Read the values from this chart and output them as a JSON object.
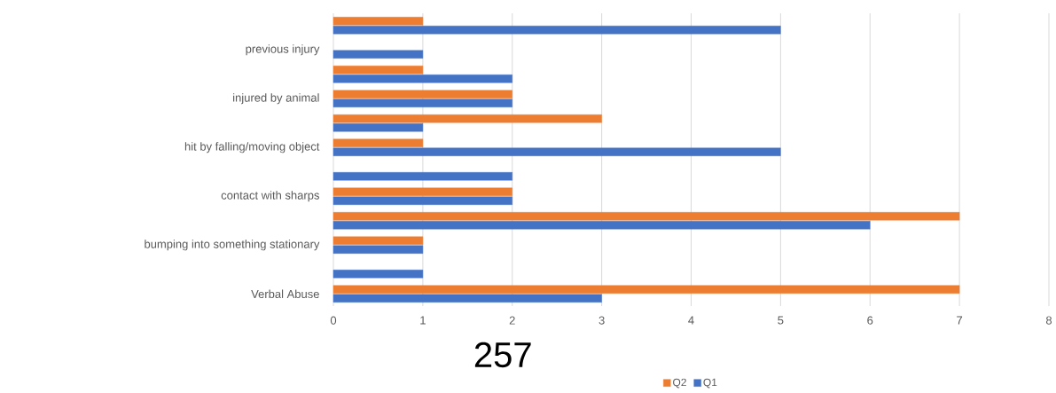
{
  "chart_data": {
    "type": "bar",
    "orientation": "horizontal",
    "categories": [
      null,
      "previous injury",
      null,
      "injured by animal",
      null,
      "hit by falling/moving object",
      null,
      "contact with sharps",
      null,
      "bumping into something stationary",
      null,
      "Verbal Abuse"
    ],
    "series": [
      {
        "name": "Q2",
        "color": "#ed7d31",
        "values": [
          1,
          null,
          1,
          2,
          3,
          1,
          null,
          2,
          7,
          1,
          null,
          7
        ]
      },
      {
        "name": "Q1",
        "color": "#4472c4",
        "values": [
          5,
          1,
          2,
          2,
          1,
          5,
          2,
          2,
          6,
          1,
          1,
          3
        ]
      }
    ],
    "xlim": [
      0,
      8
    ],
    "xticks": [
      0,
      1,
      2,
      3,
      4,
      5,
      6,
      7,
      8
    ],
    "grid": "x",
    "legend": "bottom",
    "annotations": [
      "257"
    ]
  }
}
